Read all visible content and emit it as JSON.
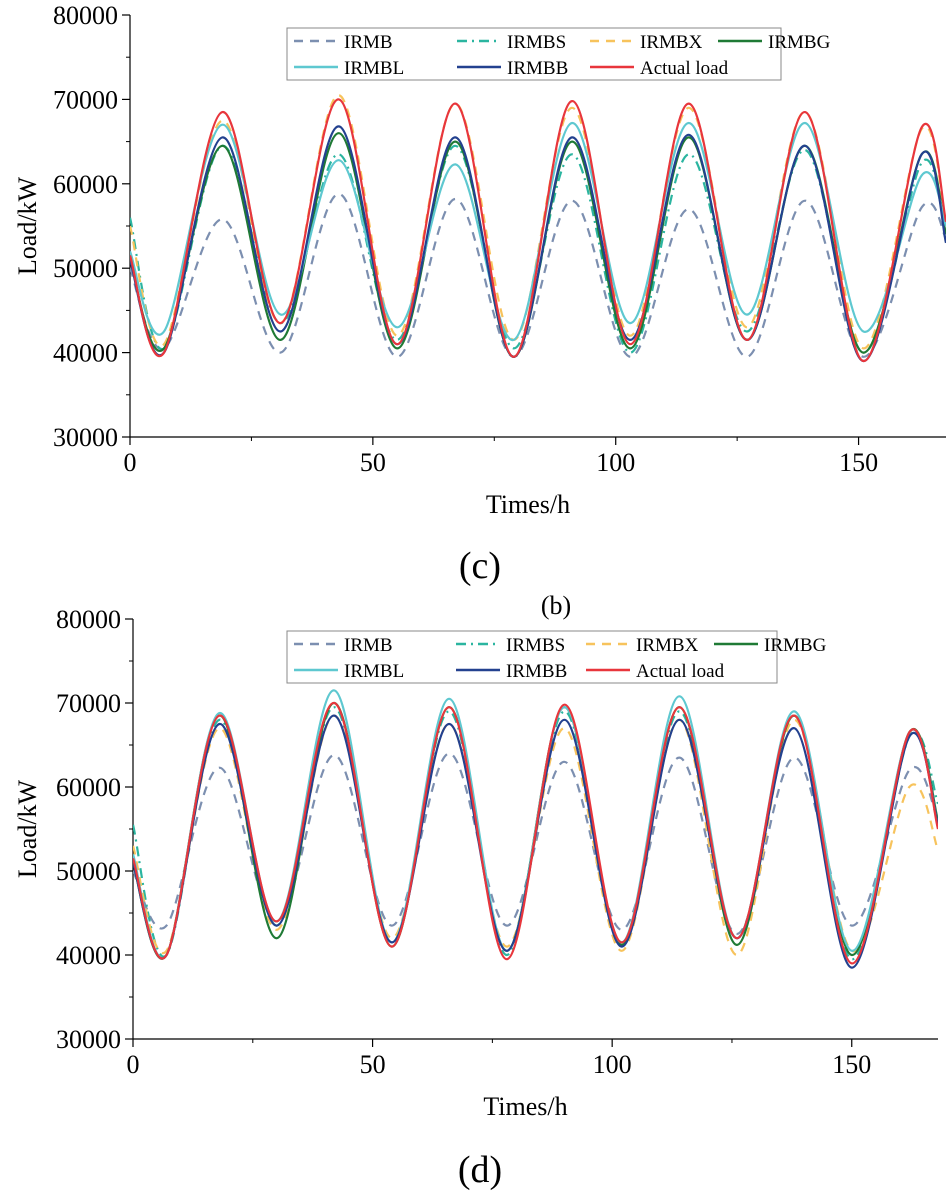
{
  "chart_data": [
    {
      "type": "line",
      "panel_label": "(c)",
      "xlabel": "Times/h",
      "ylabel": "Load/kW",
      "xlim": [
        0,
        168
      ],
      "ylim": [
        30000,
        80000
      ],
      "x_ticks": [
        0,
        50,
        100,
        150
      ],
      "y_ticks": [
        30000,
        40000,
        50000,
        60000,
        70000,
        80000
      ],
      "legend_position": "top-center",
      "x": [
        0,
        7,
        19,
        31,
        43,
        55,
        67,
        79,
        91,
        103,
        115,
        127,
        139,
        151,
        163,
        168
      ],
      "series": [
        {
          "name": "IRMB",
          "color": "#7c8fb0",
          "dash": "dash",
          "values": [
            50000,
            40500,
            55800,
            40000,
            58800,
            39500,
            58200,
            39500,
            58000,
            39500,
            57000,
            39500,
            58000,
            39500,
            57200,
            53500
          ]
        },
        {
          "name": "IRMBS",
          "color": "#2bb5a0",
          "dash": "dashdot",
          "values": [
            56000,
            40500,
            64500,
            43500,
            63500,
            41500,
            64500,
            40500,
            63500,
            40000,
            63500,
            42500,
            64000,
            40000,
            62500,
            54000
          ]
        },
        {
          "name": "IRMBX",
          "color": "#f7c35c",
          "dash": "dash",
          "values": [
            55000,
            41000,
            67500,
            43500,
            70500,
            42000,
            69500,
            41500,
            69000,
            42000,
            69000,
            43000,
            68500,
            40500,
            66500,
            55000
          ]
        },
        {
          "name": "IRMBG",
          "color": "#1f7a35",
          "dash": "solid",
          "values": [
            51000,
            40500,
            64500,
            41500,
            66000,
            40500,
            65000,
            39500,
            65000,
            40500,
            65500,
            41500,
            64500,
            40000,
            63500,
            54000
          ]
        },
        {
          "name": "IRMBL",
          "color": "#5ec8d0",
          "dash": "solid",
          "values": [
            52000,
            42500,
            67000,
            44500,
            62800,
            43000,
            62300,
            41500,
            67200,
            43500,
            67200,
            44500,
            67200,
            42500,
            61000,
            55000
          ]
        },
        {
          "name": "IRMBB",
          "color": "#23418f",
          "dash": "solid",
          "values": [
            51000,
            40000,
            65500,
            42500,
            66800,
            41000,
            65500,
            39500,
            65500,
            41500,
            65800,
            41500,
            64500,
            39000,
            63500,
            53000
          ]
        },
        {
          "name": "Actual load",
          "color": "#e8363c",
          "dash": "solid",
          "values": [
            51500,
            40000,
            68500,
            43500,
            70000,
            41000,
            69500,
            39500,
            69800,
            41000,
            69500,
            41500,
            68500,
            39000,
            66700,
            55500
          ]
        }
      ]
    },
    {
      "type": "line",
      "panel_label": "(d)",
      "xlabel": "Times/h",
      "ylabel": "Load/kW",
      "xlim": [
        0,
        168
      ],
      "ylim": [
        30000,
        80000
      ],
      "x_ticks": [
        0,
        50,
        100,
        150
      ],
      "y_ticks": [
        30000,
        40000,
        50000,
        60000,
        70000,
        80000
      ],
      "legend_position": "top-center",
      "x": [
        0,
        7,
        18,
        30,
        42,
        54,
        66,
        78,
        90,
        102,
        114,
        126,
        138,
        150,
        162,
        168
      ],
      "series": [
        {
          "name": "IRMB",
          "color": "#7c8fb0",
          "dash": "dash",
          "values": [
            50000,
            43500,
            62300,
            44000,
            63800,
            43500,
            64000,
            43500,
            63000,
            43000,
            63500,
            42500,
            63500,
            43500,
            62000,
            56000
          ]
        },
        {
          "name": "IRMBS",
          "color": "#2bb5a0",
          "dash": "dashdot",
          "values": [
            55500,
            40000,
            68000,
            43500,
            69500,
            41500,
            69000,
            40000,
            69000,
            41500,
            69000,
            42000,
            68500,
            39500,
            66000,
            58000
          ]
        },
        {
          "name": "IRMBX",
          "color": "#f7c35c",
          "dash": "dash",
          "values": [
            53000,
            40500,
            67000,
            43000,
            68500,
            42000,
            67500,
            41000,
            67000,
            40500,
            68000,
            40000,
            68000,
            40500,
            60000,
            52500
          ]
        },
        {
          "name": "IRMBG",
          "color": "#1f7a35",
          "dash": "solid",
          "values": [
            51000,
            40000,
            68500,
            42000,
            70000,
            41000,
            69500,
            40500,
            69500,
            41200,
            69500,
            41200,
            68500,
            40000,
            66500,
            56000
          ]
        },
        {
          "name": "IRMBL",
          "color": "#5ec8d0",
          "dash": "solid",
          "values": [
            52000,
            40000,
            68800,
            44000,
            71500,
            41500,
            70500,
            40500,
            69500,
            41500,
            70800,
            42000,
            69000,
            40500,
            66500,
            55500
          ]
        },
        {
          "name": "IRMBB",
          "color": "#23418f",
          "dash": "solid",
          "values": [
            51000,
            40000,
            67500,
            43500,
            68500,
            41500,
            67500,
            40500,
            68000,
            41000,
            68000,
            42000,
            67000,
            38500,
            66000,
            55500
          ]
        },
        {
          "name": "Actual load",
          "color": "#e8363c",
          "dash": "solid",
          "values": [
            51500,
            40000,
            68500,
            44000,
            70000,
            41000,
            69500,
            39500,
            69800,
            41500,
            69500,
            42000,
            68500,
            39000,
            66500,
            55000
          ]
        }
      ]
    }
  ],
  "stray_label": "(b)"
}
